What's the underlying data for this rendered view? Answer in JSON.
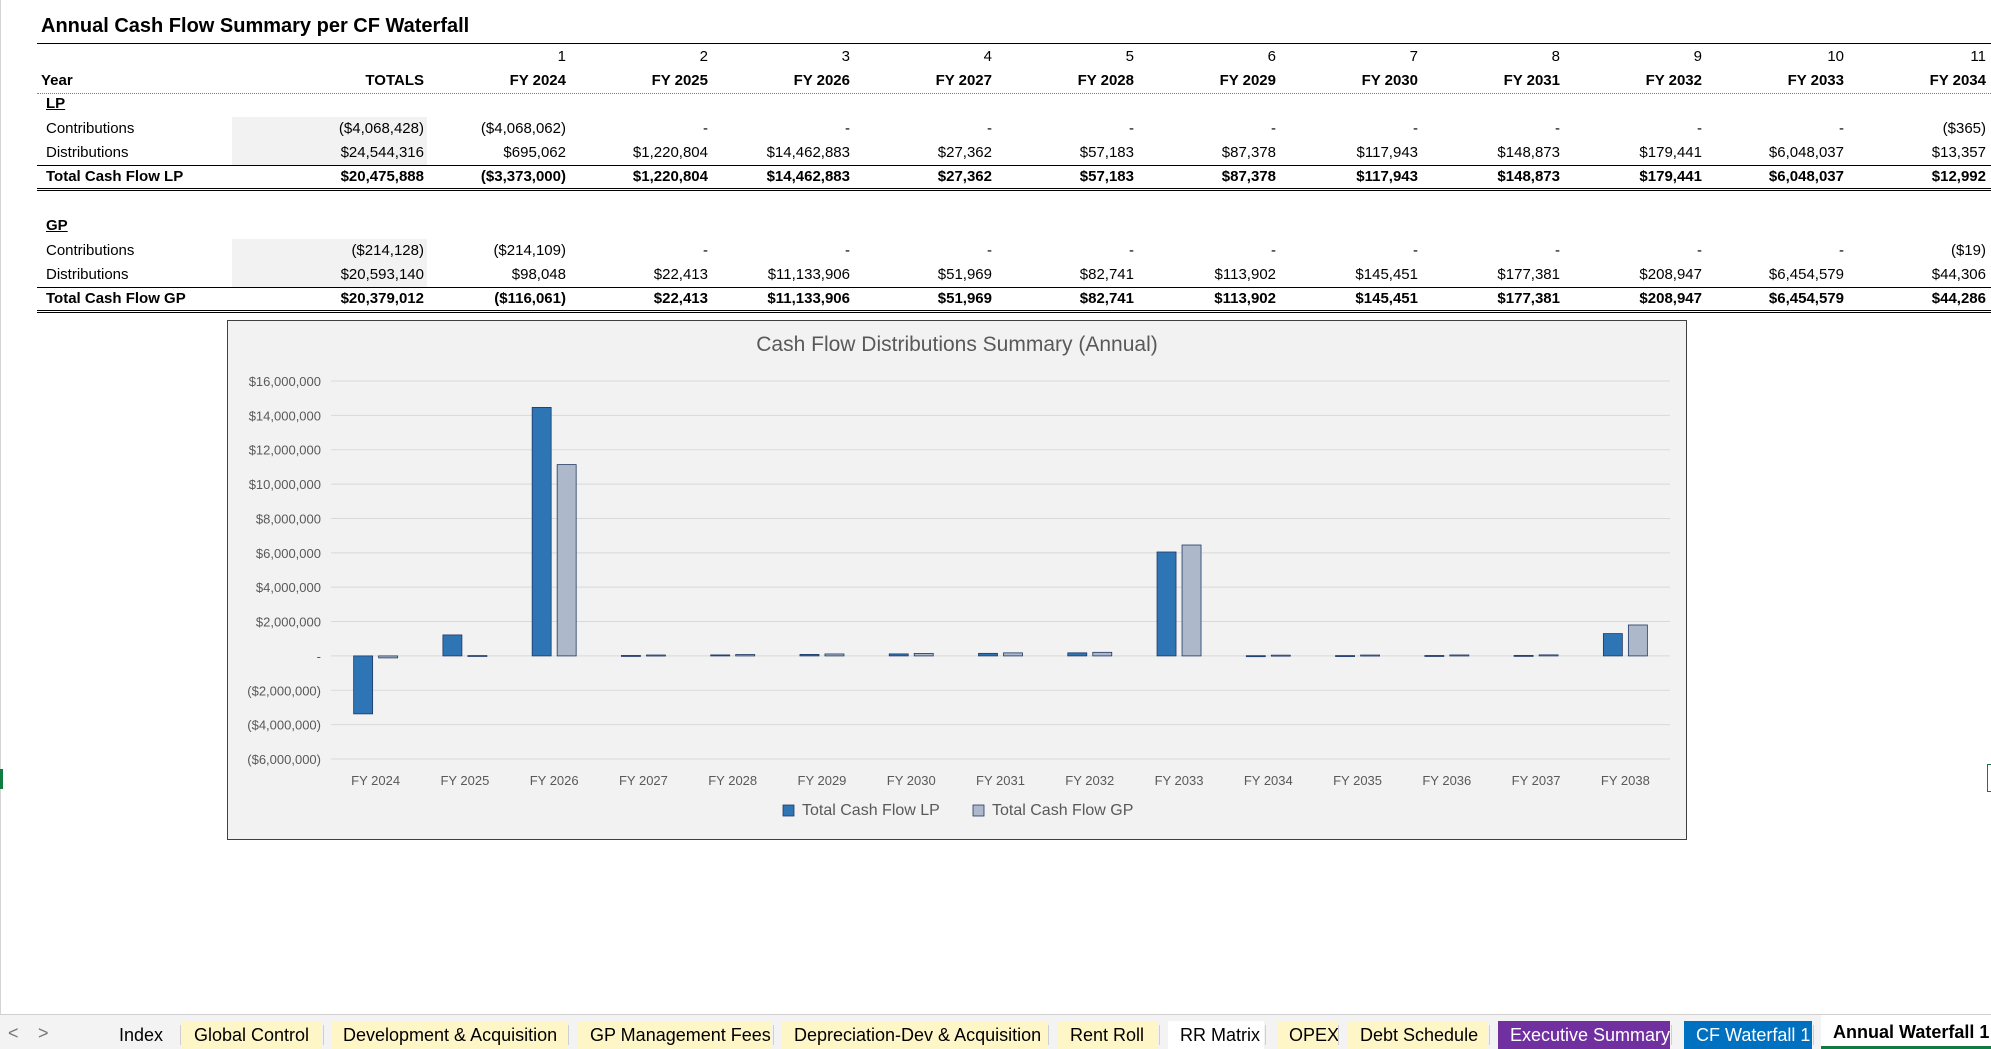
{
  "title": "Annual Cash Flow Summary per CF Waterfall",
  "header": {
    "year_label": "Year",
    "totals_label": "TOTALS",
    "periods": [
      "1",
      "2",
      "3",
      "4",
      "5",
      "6",
      "7",
      "8",
      "9",
      "10",
      "11"
    ],
    "years": [
      "FY 2024",
      "FY 2025",
      "FY 2026",
      "FY 2027",
      "FY 2028",
      "FY 2029",
      "FY 2030",
      "FY 2031",
      "FY 2032",
      "FY 2033",
      "FY 2034"
    ]
  },
  "lp": {
    "section": "LP",
    "rows": [
      {
        "label": "Contributions",
        "total": "($4,068,428)",
        "values": [
          "($4,068,062)",
          "-",
          "-",
          "-",
          "-",
          "-",
          "-",
          "-",
          "-",
          "-",
          "($365)"
        ]
      },
      {
        "label": "Distributions",
        "total": "$24,544,316",
        "values": [
          "$695,062",
          "$1,220,804",
          "$14,462,883",
          "$27,362",
          "$57,183",
          "$87,378",
          "$117,943",
          "$148,873",
          "$179,441",
          "$6,048,037",
          "$13,357"
        ]
      }
    ],
    "total_row": {
      "label": "Total Cash Flow LP",
      "total": "$20,475,888",
      "values": [
        "($3,373,000)",
        "$1,220,804",
        "$14,462,883",
        "$27,362",
        "$57,183",
        "$87,378",
        "$117,943",
        "$148,873",
        "$179,441",
        "$6,048,037",
        "$12,992"
      ]
    }
  },
  "gp": {
    "section": "GP",
    "rows": [
      {
        "label": "Contributions",
        "total": "($214,128)",
        "values": [
          "($214,109)",
          "-",
          "-",
          "-",
          "-",
          "-",
          "-",
          "-",
          "-",
          "-",
          "($19)"
        ]
      },
      {
        "label": "Distributions",
        "total": "$20,593,140",
        "values": [
          "$98,048",
          "$22,413",
          "$11,133,906",
          "$51,969",
          "$82,741",
          "$113,902",
          "$145,451",
          "$177,381",
          "$208,947",
          "$6,454,579",
          "$44,306"
        ]
      }
    ],
    "total_row": {
      "label": "Total Cash Flow GP",
      "total": "$20,379,012",
      "values": [
        "($116,061)",
        "$22,413",
        "$11,133,906",
        "$51,969",
        "$82,741",
        "$113,902",
        "$145,451",
        "$177,381",
        "$208,947",
        "$6,454,579",
        "$44,286"
      ]
    }
  },
  "chart_data": {
    "type": "bar",
    "title": "Cash Flow Distributions Summary (Annual)",
    "categories": [
      "FY 2024",
      "FY 2025",
      "FY 2026",
      "FY 2027",
      "FY 2028",
      "FY 2029",
      "FY 2030",
      "FY 2031",
      "FY 2032",
      "FY 2033",
      "FY 2034",
      "FY 2035",
      "FY 2036",
      "FY 2037",
      "FY 2038"
    ],
    "series": [
      {
        "name": "Total Cash Flow LP",
        "color": "#2e75b6",
        "values": [
          -3373000,
          1220804,
          14462883,
          27362,
          57183,
          87378,
          117943,
          148873,
          179441,
          6048037,
          12992,
          20000,
          25000,
          30000,
          1300000
        ]
      },
      {
        "name": "Total Cash Flow GP",
        "color": "#adb9ca",
        "values": [
          -116061,
          22413,
          11133906,
          51969,
          82741,
          113902,
          145451,
          177381,
          208947,
          6454579,
          44286,
          50000,
          55000,
          60000,
          1800000
        ]
      }
    ],
    "ylim": [
      -6000000,
      16000000
    ],
    "yticks": [
      16000000,
      14000000,
      12000000,
      10000000,
      8000000,
      6000000,
      4000000,
      2000000,
      0,
      -2000000,
      -4000000,
      -6000000
    ],
    "ytick_labels": [
      "$16,000,000",
      "$14,000,000",
      "$12,000,000",
      "$10,000,000",
      "$8,000,000",
      "$6,000,000",
      "$4,000,000",
      "$2,000,000",
      "-",
      "($2,000,000)",
      "($4,000,000)",
      "($6,000,000)"
    ],
    "legend_position": "bottom",
    "grid": true
  },
  "tabs": {
    "prev": "<",
    "next": ">",
    "items": [
      {
        "label": "Index",
        "style": "plain"
      },
      {
        "label": "Global Control",
        "style": "yellow"
      },
      {
        "label": "Development & Acquisition",
        "style": "yellow"
      },
      {
        "label": "GP Management Fees",
        "style": "yellow"
      },
      {
        "label": "Depreciation-Dev & Acquisition",
        "style": "yellow"
      },
      {
        "label": "Rent Roll",
        "style": "yellow"
      },
      {
        "label": "RR Matrix",
        "style": "white"
      },
      {
        "label": "OPEX",
        "style": "yellow"
      },
      {
        "label": "Debt Schedule",
        "style": "yellow"
      },
      {
        "label": "Executive Summary",
        "style": "purple"
      },
      {
        "label": "CF Waterfall 1",
        "style": "blue"
      },
      {
        "label": "Annual Waterfall 1",
        "style": "active"
      }
    ]
  }
}
